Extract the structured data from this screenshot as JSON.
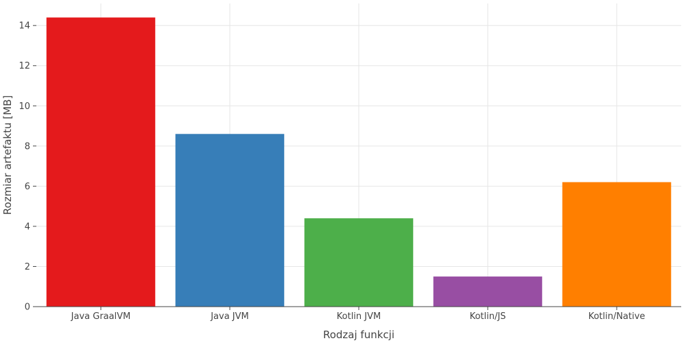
{
  "chart_data": {
    "type": "bar",
    "categories": [
      "Java GraalVM",
      "Java JVM",
      "Kotlin JVM",
      "Kotlin/JS",
      "Kotlin/Native"
    ],
    "values": [
      14.4,
      8.6,
      4.4,
      1.5,
      6.2
    ],
    "colors": [
      "#e41a1c",
      "#377eb8",
      "#4daf4a",
      "#984ea3",
      "#ff7f00"
    ],
    "xlabel": "Rodzaj funkcji",
    "ylabel": "Rozmiar artefaktu [MB]",
    "ylim": [
      0,
      15.1
    ],
    "yticks": [
      0,
      2,
      4,
      6,
      8,
      10,
      12,
      14
    ],
    "grid": true
  }
}
